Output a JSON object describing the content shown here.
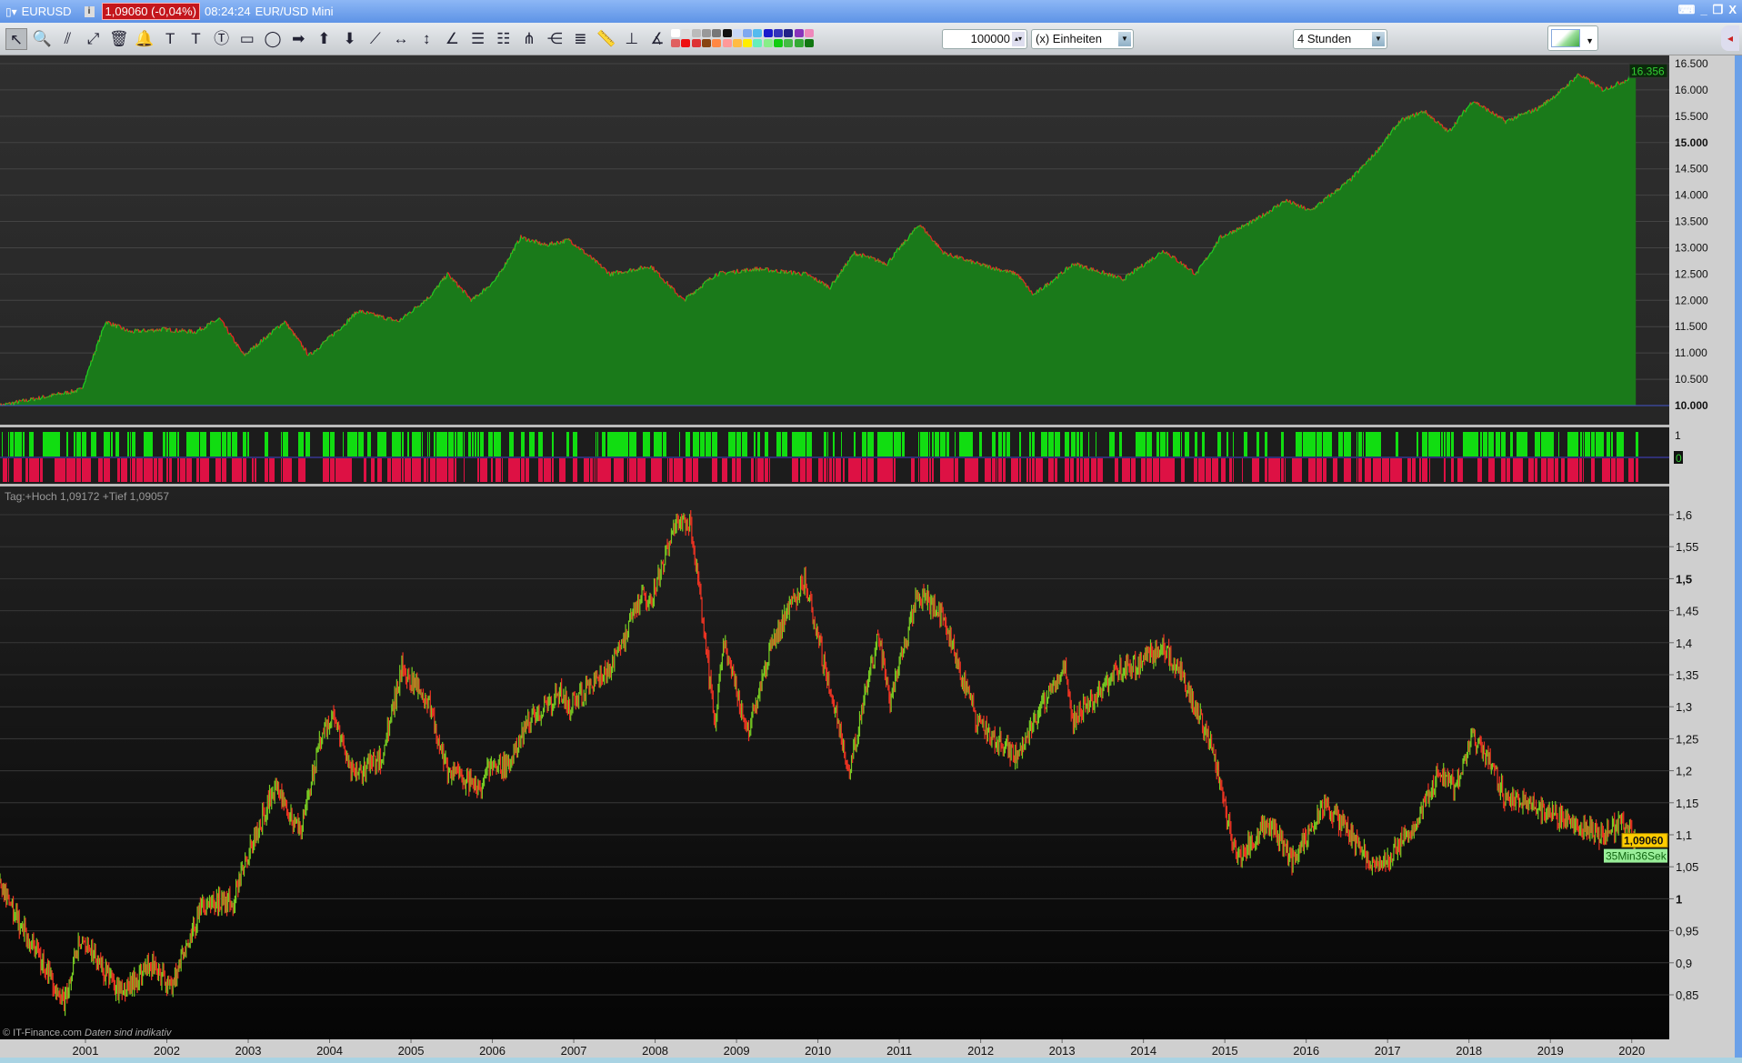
{
  "window": {
    "symbol": "EURUSD",
    "price_badge": "1,09060 (-0,04%)",
    "time": "08:24:24",
    "instrument": "EUR/USD Mini",
    "controls": [
      "⌨",
      "_",
      "❐",
      "X"
    ]
  },
  "toolbar": {
    "icons": [
      [
        "pointer-icon",
        "↖"
      ],
      [
        "zoom-icon",
        "🔍"
      ],
      [
        "trendline-icon",
        "⫽"
      ],
      [
        "line-icon",
        "⤢"
      ],
      [
        "trash-icon",
        "🗑"
      ],
      [
        "alarm-bell-icon",
        "🔔"
      ],
      [
        "text-icon",
        "T"
      ],
      [
        "text-anchor-icon",
        "T"
      ],
      [
        "callout-text-icon",
        "Ⓣ"
      ],
      [
        "rectangle-icon",
        "▭"
      ],
      [
        "ellipse-icon",
        "◯"
      ],
      [
        "arrow-right-icon",
        "➡"
      ],
      [
        "arrow-up-icon",
        "⬆"
      ],
      [
        "arrow-down-icon",
        "⬇"
      ],
      [
        "ray-icon",
        "⟋"
      ],
      [
        "horizontal-measure-icon",
        "↔"
      ],
      [
        "vertical-measure-icon",
        "↕"
      ],
      [
        "gann-line-icon",
        "∠"
      ],
      [
        "fibonacci-retracement-icon",
        "☰"
      ],
      [
        "fibonacci-extension-icon",
        "☷"
      ],
      [
        "andrews-pitchfork-icon",
        "⋔"
      ],
      [
        "fan-icon",
        "⋲"
      ],
      [
        "elliott-icon",
        "≣"
      ],
      [
        "ruler-icon",
        "📏"
      ],
      [
        "channel-icon",
        "⊥"
      ],
      [
        "angle-icon",
        "∡"
      ]
    ],
    "palette_top": [
      "#ffffff",
      "#dddddd",
      "#bbbbbb",
      "#999999",
      "#777777",
      "#111111",
      "#c8d8f8",
      "#7fa8f0",
      "#55bbee",
      "#1a1acc",
      "#3333bb",
      "#222288",
      "#8833bb",
      "#ee88bb"
    ],
    "palette_bottom": [
      "#e06060",
      "#ee1111",
      "#dd3333",
      "#884411",
      "#ff8844",
      "#ff9999",
      "#ffbb44",
      "#ffee00",
      "#66eebb",
      "#88ee88",
      "#11cc11",
      "#44bb44",
      "#33aa33",
      "#117711"
    ],
    "quantity": "100000",
    "unit_select": "(x) Einheiten",
    "timeframe_select": "4 Stunden",
    "indicator_button_icon": "indicator-chart-icon"
  },
  "chart_data": [
    {
      "type": "area",
      "y_ticks": [
        "16.500",
        "16.000",
        "15.500",
        "15.000",
        "14.500",
        "14.000",
        "13.500",
        "13.000",
        "12.500",
        "12.000",
        "11.500",
        "11.000",
        "10.500",
        "10.000"
      ],
      "ylim": [
        10000,
        16500
      ],
      "last_value_label": "16.356",
      "fill_color": "#1a7a1a",
      "line_colors": [
        "#ee2222",
        "#22cc22"
      ],
      "points": [
        [
          2000.0,
          10000
        ],
        [
          2000.5,
          10150
        ],
        [
          2001.0,
          10300
        ],
        [
          2001.3,
          11600
        ],
        [
          2001.6,
          11400
        ],
        [
          2002.0,
          11450
        ],
        [
          2002.4,
          11400
        ],
        [
          2002.7,
          11650
        ],
        [
          2003.0,
          10950
        ],
        [
          2003.5,
          11600
        ],
        [
          2003.8,
          10950
        ],
        [
          2004.2,
          11500
        ],
        [
          2004.4,
          11800
        ],
        [
          2004.9,
          11600
        ],
        [
          2005.3,
          12100
        ],
        [
          2005.5,
          12500
        ],
        [
          2005.8,
          12000
        ],
        [
          2006.1,
          12400
        ],
        [
          2006.4,
          13200
        ],
        [
          2006.7,
          13050
        ],
        [
          2007.0,
          13150
        ],
        [
          2007.5,
          12500
        ],
        [
          2008.0,
          12650
        ],
        [
          2008.4,
          12000
        ],
        [
          2008.8,
          12500
        ],
        [
          2009.3,
          12600
        ],
        [
          2009.9,
          12500
        ],
        [
          2010.2,
          12250
        ],
        [
          2010.5,
          12900
        ],
        [
          2010.9,
          12700
        ],
        [
          2011.3,
          13450
        ],
        [
          2011.6,
          12900
        ],
        [
          2012.0,
          12700
        ],
        [
          2012.5,
          12500
        ],
        [
          2012.7,
          12100
        ],
        [
          2013.2,
          12700
        ],
        [
          2013.8,
          12400
        ],
        [
          2014.3,
          12950
        ],
        [
          2014.7,
          12500
        ],
        [
          2015.0,
          13200
        ],
        [
          2015.4,
          13500
        ],
        [
          2015.8,
          13900
        ],
        [
          2016.1,
          13700
        ],
        [
          2016.6,
          14300
        ],
        [
          2016.9,
          14800
        ],
        [
          2017.2,
          15400
        ],
        [
          2017.5,
          15600
        ],
        [
          2017.8,
          15200
        ],
        [
          2018.1,
          15800
        ],
        [
          2018.5,
          15400
        ],
        [
          2018.9,
          15650
        ],
        [
          2019.2,
          16000
        ],
        [
          2019.4,
          16300
        ],
        [
          2019.7,
          16000
        ],
        [
          2020.0,
          16200
        ],
        [
          2020.1,
          16356
        ]
      ]
    },
    {
      "type": "binary-indicator",
      "y_ticks": [
        "1",
        "0"
      ],
      "colors": {
        "up": "#11dd11",
        "down": "#dd1144"
      }
    },
    {
      "type": "bar",
      "title": "Tag:+Hoch 1,09172 +Tief 1,09057",
      "y_ticks": [
        "1,6",
        "1,55",
        "1,5",
        "1,45",
        "1,4",
        "1,35",
        "1,3",
        "1,25",
        "1,2",
        "1,15",
        "1,1",
        "1,05",
        "1",
        "0,95",
        "0,9",
        "0,85"
      ],
      "ylim": [
        0.8,
        1.62
      ],
      "x_ticks": [
        "2001",
        "2002",
        "2003",
        "2004",
        "2005",
        "2006",
        "2007",
        "2008",
        "2009",
        "2010",
        "2011",
        "2012",
        "2013",
        "2014",
        "2015",
        "2016",
        "2017",
        "2018",
        "2019",
        "2020"
      ],
      "last_price": "1,09060",
      "countdown": "35Min36Sek",
      "up_color": "#77cc22",
      "down_color": "#ee3322",
      "points": [
        [
          2000.0,
          1.03
        ],
        [
          2000.3,
          0.95
        ],
        [
          2000.8,
          0.84
        ],
        [
          2001.0,
          0.94
        ],
        [
          2001.5,
          0.85
        ],
        [
          2001.9,
          0.9
        ],
        [
          2002.1,
          0.86
        ],
        [
          2002.5,
          0.99
        ],
        [
          2002.9,
          1.0
        ],
        [
          2003.0,
          1.05
        ],
        [
          2003.4,
          1.18
        ],
        [
          2003.7,
          1.1
        ],
        [
          2003.95,
          1.25
        ],
        [
          2004.1,
          1.29
        ],
        [
          2004.35,
          1.19
        ],
        [
          2004.7,
          1.22
        ],
        [
          2004.95,
          1.36
        ],
        [
          2005.3,
          1.3
        ],
        [
          2005.5,
          1.2
        ],
        [
          2005.9,
          1.17
        ],
        [
          2006.0,
          1.2
        ],
        [
          2006.3,
          1.21
        ],
        [
          2006.5,
          1.28
        ],
        [
          2006.9,
          1.32
        ],
        [
          2007.0,
          1.3
        ],
        [
          2007.5,
          1.36
        ],
        [
          2007.9,
          1.47
        ],
        [
          2008.0,
          1.46
        ],
        [
          2008.3,
          1.58
        ],
        [
          2008.5,
          1.59
        ],
        [
          2008.8,
          1.27
        ],
        [
          2008.9,
          1.4
        ],
        [
          2009.2,
          1.26
        ],
        [
          2009.5,
          1.4
        ],
        [
          2009.9,
          1.5
        ],
        [
          2010.0,
          1.44
        ],
        [
          2010.45,
          1.2
        ],
        [
          2010.8,
          1.41
        ],
        [
          2010.95,
          1.31
        ],
        [
          2011.3,
          1.48
        ],
        [
          2011.6,
          1.44
        ],
        [
          2011.9,
          1.32
        ],
        [
          2012.0,
          1.28
        ],
        [
          2012.5,
          1.22
        ],
        [
          2012.9,
          1.32
        ],
        [
          2013.1,
          1.36
        ],
        [
          2013.2,
          1.28
        ],
        [
          2013.7,
          1.35
        ],
        [
          2014.3,
          1.39
        ],
        [
          2014.5,
          1.36
        ],
        [
          2014.9,
          1.24
        ],
        [
          2015.2,
          1.06
        ],
        [
          2015.6,
          1.12
        ],
        [
          2015.9,
          1.06
        ],
        [
          2016.3,
          1.15
        ],
        [
          2016.9,
          1.05
        ],
        [
          2017.0,
          1.05
        ],
        [
          2017.4,
          1.12
        ],
        [
          2017.7,
          1.2
        ],
        [
          2017.9,
          1.17
        ],
        [
          2018.1,
          1.25
        ],
        [
          2018.3,
          1.22
        ],
        [
          2018.5,
          1.16
        ],
        [
          2018.9,
          1.14
        ],
        [
          2019.3,
          1.12
        ],
        [
          2019.7,
          1.1
        ],
        [
          2019.95,
          1.12
        ],
        [
          2020.1,
          1.09
        ]
      ]
    }
  ],
  "footer": {
    "copyright": "© IT-Finance.com",
    "disclaimer": "Daten sind indikativ"
  }
}
